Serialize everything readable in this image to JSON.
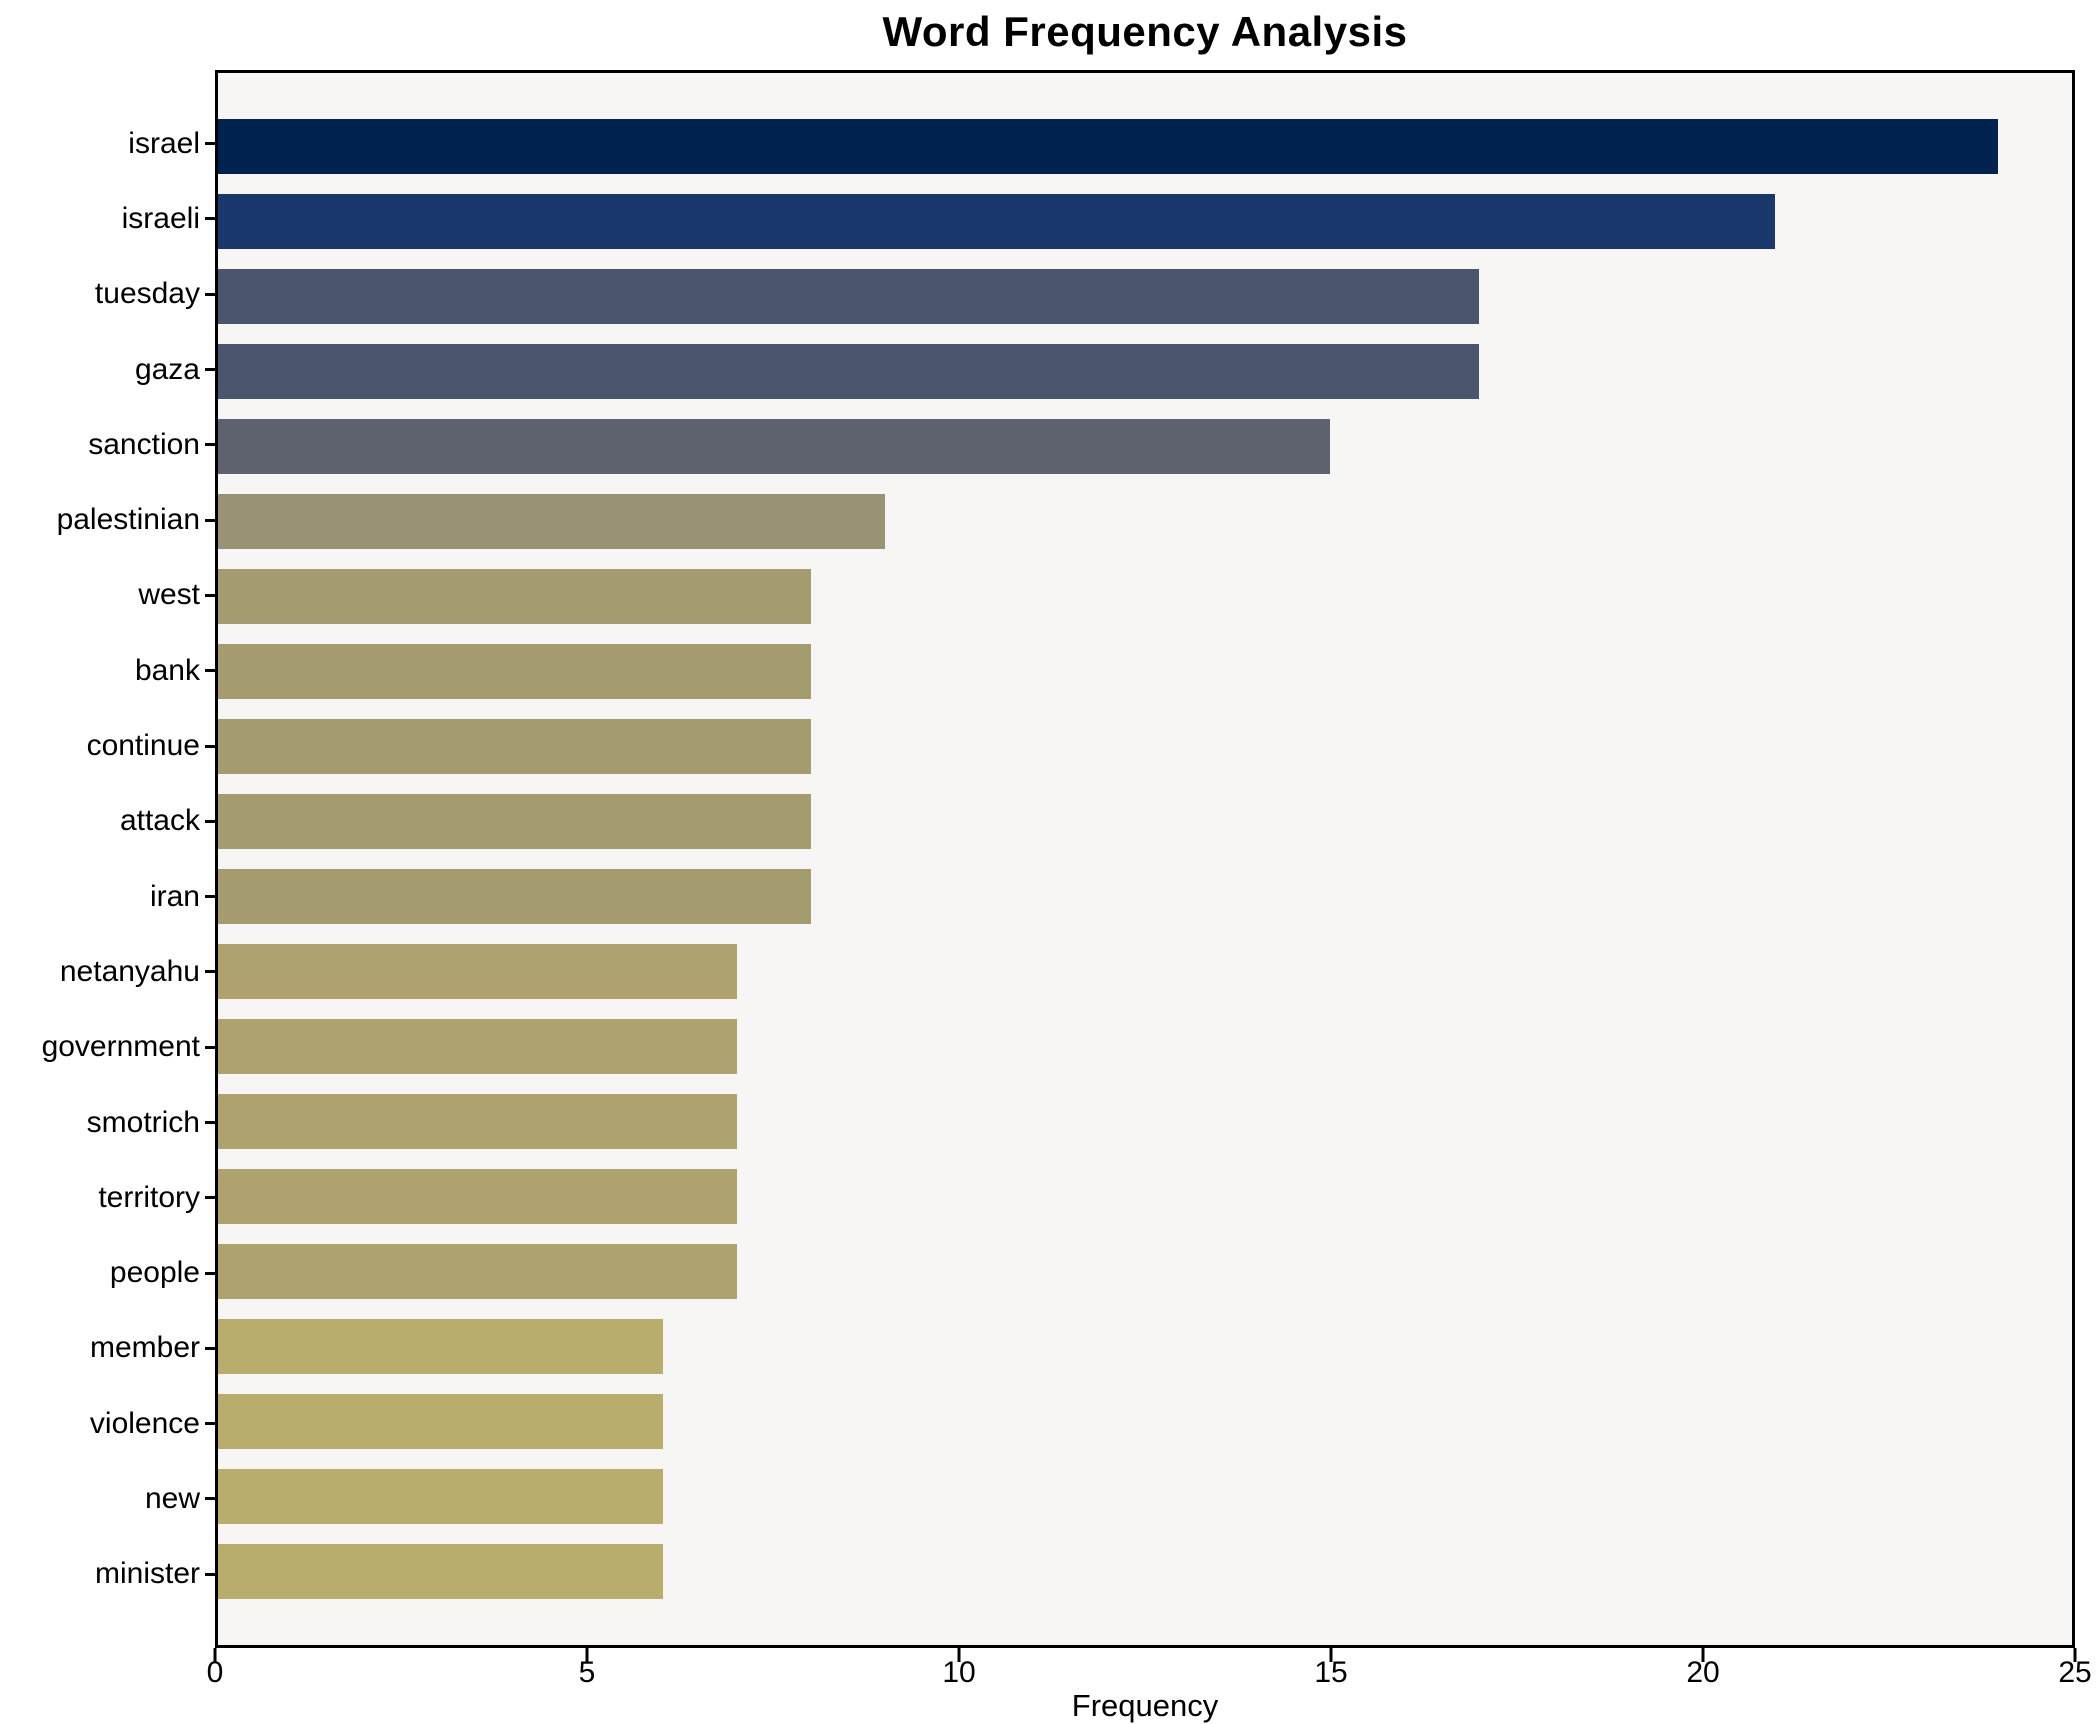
{
  "chart_data": {
    "type": "bar",
    "orientation": "horizontal",
    "title": "Word Frequency Analysis",
    "xlabel": "Frequency",
    "ylabel": "",
    "xlim": [
      0,
      25
    ],
    "x_ticks": [
      0,
      5,
      10,
      15,
      20,
      25
    ],
    "grid": false,
    "plot_background": "#f7f6f5",
    "spine_color": "#000000",
    "categories": [
      "israel",
      "israeli",
      "tuesday",
      "gaza",
      "sanction",
      "palestinian",
      "west",
      "bank",
      "continue",
      "attack",
      "iran",
      "netanyahu",
      "government",
      "smotrich",
      "territory",
      "people",
      "member",
      "violence",
      "new",
      "minister"
    ],
    "values": [
      24,
      21,
      17,
      17,
      15,
      9,
      8,
      8,
      8,
      8,
      8,
      7,
      7,
      7,
      7,
      7,
      6,
      6,
      6,
      6
    ],
    "bar_colors": [
      "#00224e",
      "#1b386c",
      "#4b556e",
      "#4b556e",
      "#5e626e",
      "#999274",
      "#a49b71",
      "#a49b71",
      "#a49b71",
      "#a49b71",
      "#a49b71",
      "#aea36e",
      "#aea36e",
      "#aea36e",
      "#aea36e",
      "#aea36e",
      "#b8ad6d",
      "#b8ad6d",
      "#b8ad6d",
      "#b8ad6d"
    ]
  }
}
